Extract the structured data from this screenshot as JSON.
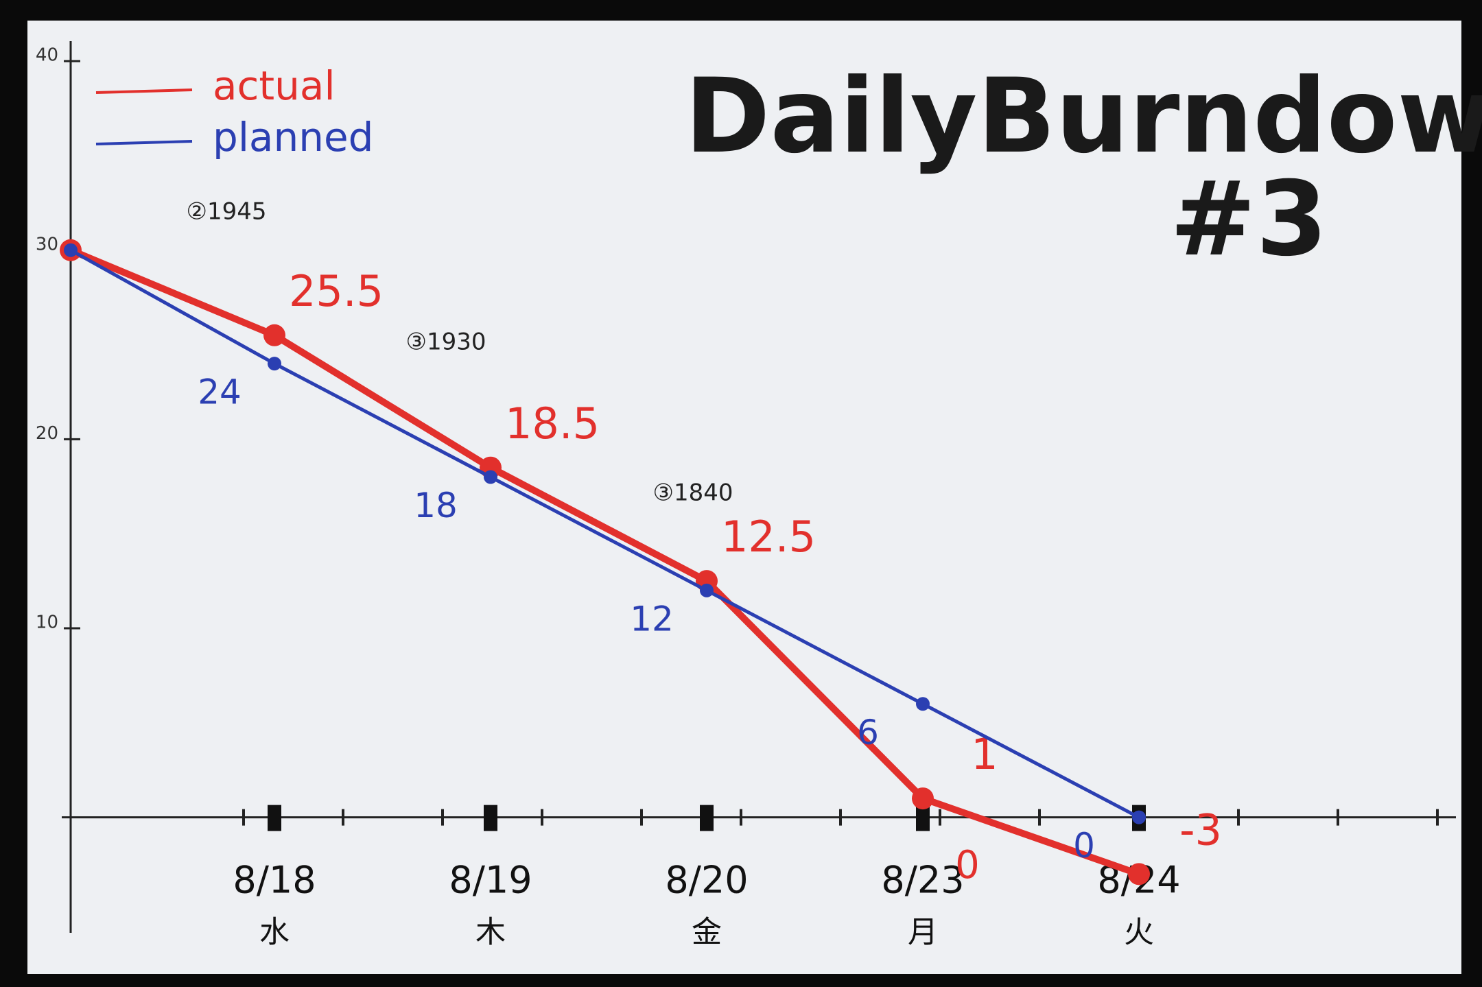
{
  "chart_data": {
    "type": "line",
    "title": "DailyBurndown",
    "subtitle": "#3",
    "categories": [
      null,
      "8/18",
      "8/19",
      "8/20",
      "8/23",
      "8/24"
    ],
    "weekdays": [
      null,
      "水",
      "木",
      "金",
      "月",
      "火"
    ],
    "series": [
      {
        "name": "actual",
        "color": "#e2302c",
        "values": [
          30,
          25.5,
          18.5,
          12.5,
          1,
          -3
        ]
      },
      {
        "name": "planned",
        "color": "#2b3fb2",
        "values": [
          30,
          24,
          18,
          12,
          6,
          0
        ]
      }
    ],
    "annotations": [
      "②1945",
      "③1930",
      "③1840",
      "0"
    ],
    "ylim": [
      -6,
      42
    ],
    "yticks": [
      10,
      20,
      30,
      40
    ],
    "legend": "top-left"
  }
}
